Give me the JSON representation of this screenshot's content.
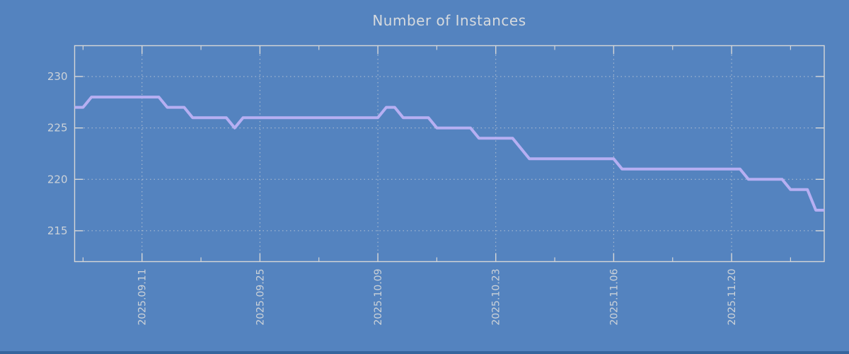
{
  "window": {
    "background": "#5483bf",
    "bottom_edge_color": "#36659d"
  },
  "chart_data": {
    "type": "line",
    "title": "Number of Instances",
    "xlabel": "",
    "ylabel": "",
    "legend": "none",
    "grid": true,
    "ylim": [
      212,
      233
    ],
    "y_ticks": [
      215,
      220,
      225,
      230
    ],
    "x_range": [
      "2025-09-03",
      "2025-12-01"
    ],
    "x_major_ticks": [
      {
        "date": "2025-09-11",
        "label": "2025.09.11"
      },
      {
        "date": "2025-09-25",
        "label": "2025.09.25"
      },
      {
        "date": "2025-10-09",
        "label": "2025.10.09"
      },
      {
        "date": "2025-10-23",
        "label": "2025.10.23"
      },
      {
        "date": "2025-11-06",
        "label": "2025.11.06"
      },
      {
        "date": "2025-11-20",
        "label": "2025.11.20"
      }
    ],
    "x_minor_ticks": [
      "2025-09-04",
      "2025-09-18",
      "2025-10-02",
      "2025-10-16",
      "2025-10-30",
      "2025-11-13",
      "2025-11-27"
    ],
    "colors": {
      "line": "#b6aff2",
      "grid": "#ccd2d8",
      "border": "#d6d6d6",
      "tick_text": "#ccd2d8",
      "title_text": "#d6dade"
    },
    "series": [
      {
        "name": "instances",
        "points": [
          [
            "2025-09-03",
            227
          ],
          [
            "2025-09-04",
            227
          ],
          [
            "2025-09-05",
            228
          ],
          [
            "2025-09-13",
            228
          ],
          [
            "2025-09-14",
            227
          ],
          [
            "2025-09-16",
            227
          ],
          [
            "2025-09-17",
            226
          ],
          [
            "2025-09-21",
            226
          ],
          [
            "2025-09-22",
            225
          ],
          [
            "2025-09-23",
            226
          ],
          [
            "2025-10-09",
            226
          ],
          [
            "2025-10-10",
            227
          ],
          [
            "2025-10-11",
            227
          ],
          [
            "2025-10-12",
            226
          ],
          [
            "2025-10-15",
            226
          ],
          [
            "2025-10-16",
            225
          ],
          [
            "2025-10-20",
            225
          ],
          [
            "2025-10-21",
            224
          ],
          [
            "2025-10-25",
            224
          ],
          [
            "2025-10-27",
            222
          ],
          [
            "2025-11-06",
            222
          ],
          [
            "2025-11-07",
            221
          ],
          [
            "2025-11-21",
            221
          ],
          [
            "2025-11-22",
            220
          ],
          [
            "2025-11-26",
            220
          ],
          [
            "2025-11-27",
            219
          ],
          [
            "2025-11-29",
            219
          ],
          [
            "2025-11-30",
            217
          ],
          [
            "2025-12-01",
            217
          ]
        ]
      }
    ]
  }
}
